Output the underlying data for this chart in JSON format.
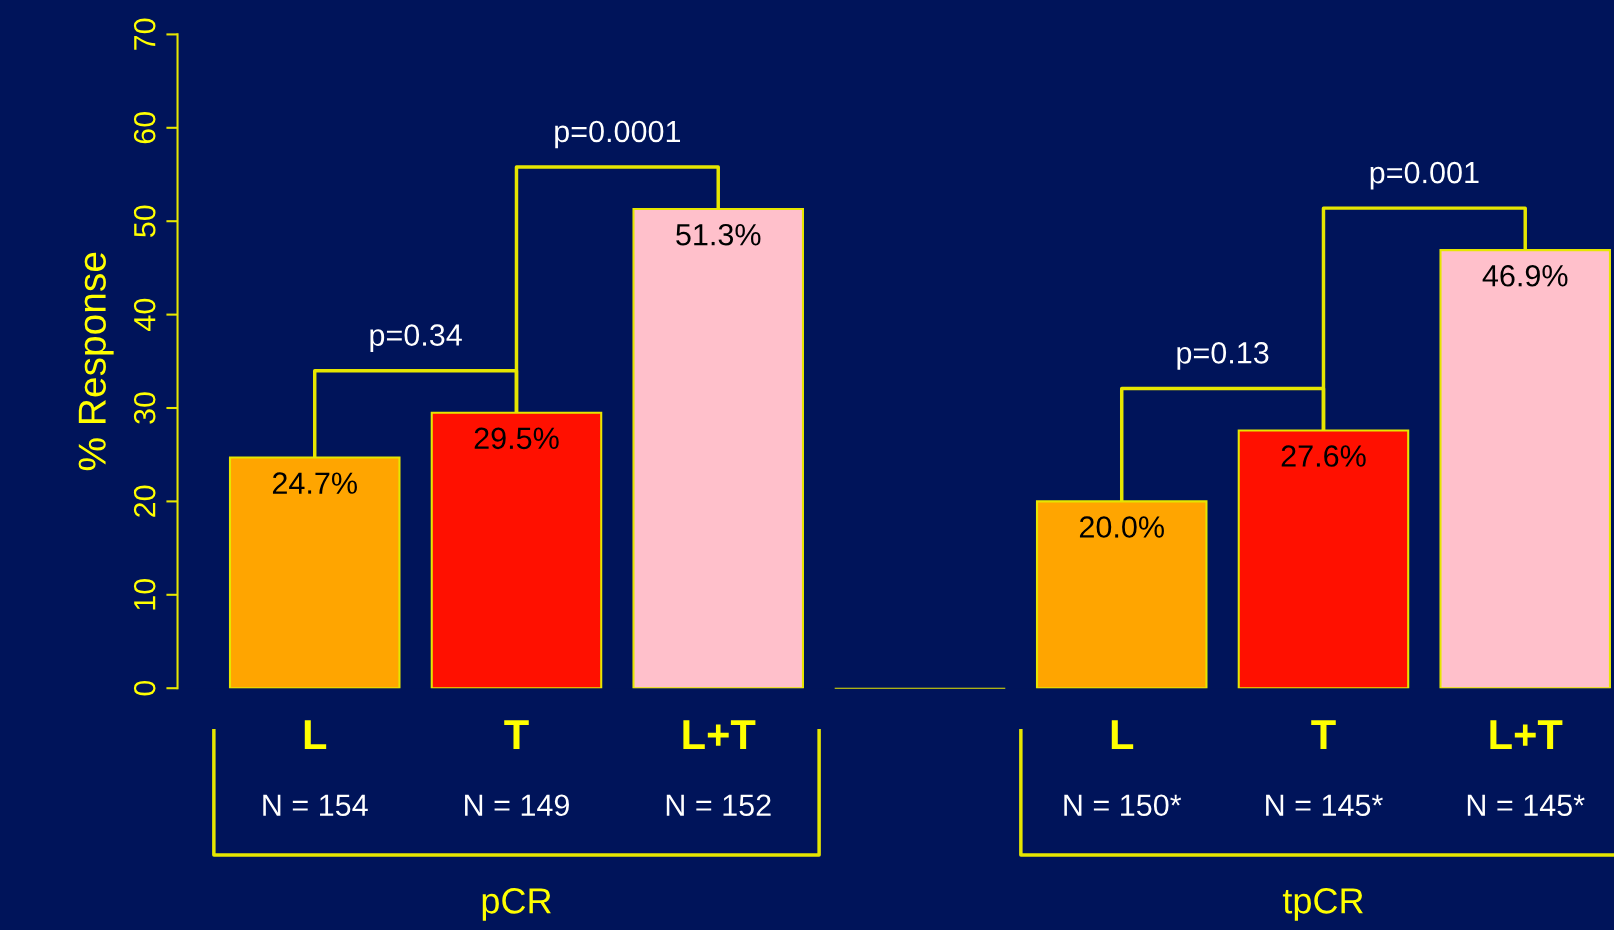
{
  "chart_data": {
    "type": "bar",
    "ylabel": "% Response",
    "categories": [
      "L",
      "T",
      "L+T",
      null,
      "L",
      "T",
      "L+T"
    ],
    "values": [
      24.7,
      29.5,
      51.3,
      null,
      20.0,
      27.6,
      46.9
    ],
    "colors": [
      "#ffa500",
      "#ff1000",
      "#ffc0cb",
      null,
      "#ffa500",
      "#ff1000",
      "#ffc0cb"
    ],
    "value_labels": [
      "24.7%",
      "29.5%",
      "51.3%",
      null,
      "20.0%",
      "27.6%",
      "46.9%"
    ],
    "ylim": [
      0,
      70
    ],
    "yticks": [
      0,
      10,
      20,
      30,
      40,
      50,
      60,
      70
    ],
    "grid": false,
    "annotations": [
      "N = 154",
      "N = 149",
      "N = 152",
      "N = 150*",
      "N = 145*",
      "N = 145*",
      "p=0.34",
      "p=0.0001",
      "p=0.13",
      "p=0.001",
      "pCR",
      "tpCR"
    ]
  }
}
